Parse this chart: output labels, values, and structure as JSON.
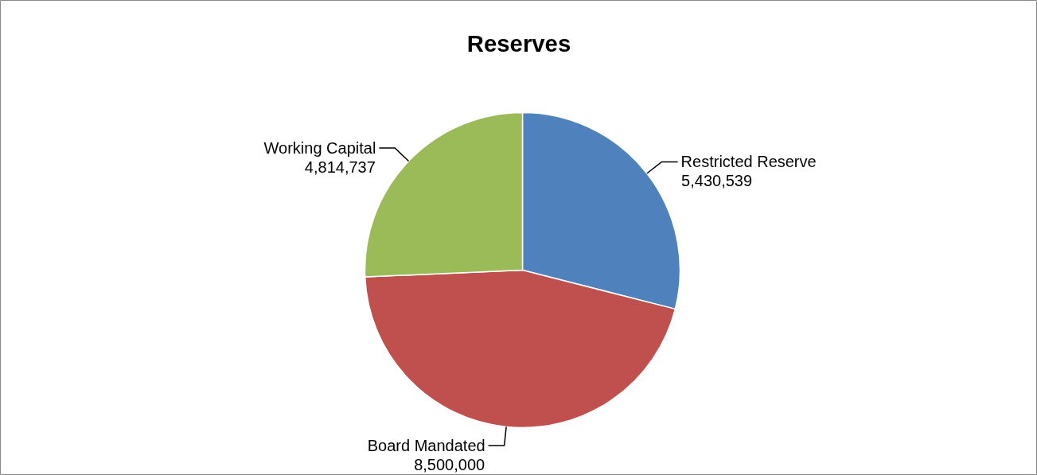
{
  "chart_data": {
    "type": "pie",
    "title": "Reserves",
    "categories": [
      "Restricted Reserve",
      "Board Mandated",
      "Working Capital"
    ],
    "values": [
      5430539,
      8500000,
      4814737
    ],
    "value_labels": [
      "5,430,539",
      "8,500,000",
      "4,814,737"
    ],
    "colors": [
      "#4f81bd",
      "#c0504d",
      "#9bbb59"
    ]
  }
}
